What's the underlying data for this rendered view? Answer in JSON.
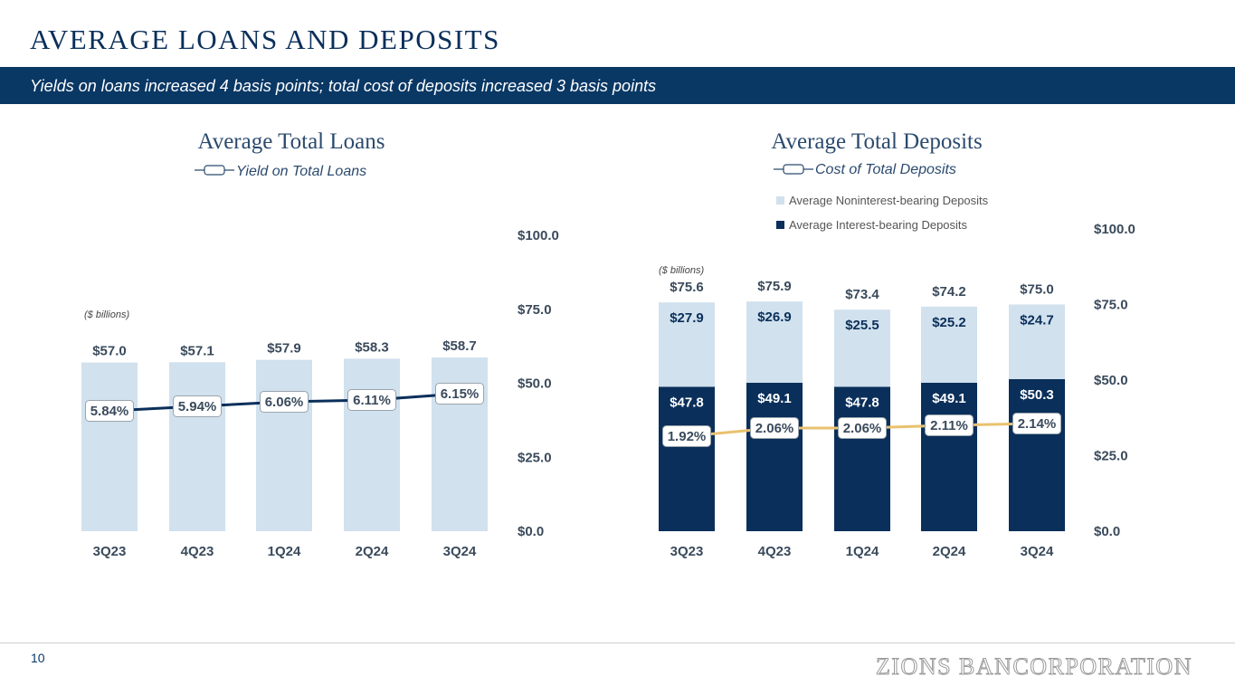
{
  "header": {
    "title": "AVERAGE LOANS AND DEPOSITS",
    "subtitle": "Yields on loans increased 4 basis points; total cost of deposits increased 3 basis points"
  },
  "footer": {
    "page_number": "10",
    "logo_text": "ZIONS BANCORPORATION"
  },
  "colors": {
    "navy": "#0a2f5a",
    "light_blue": "#d1e1ee",
    "gold": "#e8c270",
    "banner": "#0a3865"
  },
  "chart_data": [
    {
      "type": "bar",
      "title": "Average Total Loans",
      "units_note": "($ billions)",
      "categories": [
        "3Q23",
        "4Q23",
        "1Q24",
        "2Q24",
        "3Q24"
      ],
      "values": [
        57.0,
        57.1,
        57.9,
        58.3,
        58.7
      ],
      "value_labels": [
        "$57.0",
        "$57.1",
        "$57.9",
        "$58.3",
        "$58.7"
      ],
      "ylim": [
        0,
        100
      ],
      "y_axis_position": "right",
      "y_ticks": [
        0,
        25,
        50,
        75,
        100
      ],
      "y_tick_labels": [
        "$0.0",
        "$25.0",
        "$50.0",
        "$75.0",
        "$100.0"
      ],
      "line_series": {
        "name": "Yield on Total Loans",
        "values": [
          5.84,
          5.94,
          6.06,
          6.11,
          6.15
        ],
        "labels": [
          "5.84%",
          "5.94%",
          "6.06%",
          "6.11%",
          "6.15%"
        ]
      }
    },
    {
      "type": "stacked_bar",
      "title": "Average Total Deposits",
      "units_note": "($ billions)",
      "categories": [
        "3Q23",
        "4Q23",
        "1Q24",
        "2Q24",
        "3Q24"
      ],
      "series": [
        {
          "name": "Average Interest-bearing Deposits",
          "values": [
            47.8,
            49.1,
            47.8,
            49.1,
            50.3
          ],
          "labels": [
            "$47.8",
            "$49.1",
            "$47.8",
            "$49.1",
            "$50.3"
          ]
        },
        {
          "name": "Average Noninterest-bearing Deposits",
          "values": [
            27.9,
            26.9,
            25.5,
            25.2,
            24.7
          ],
          "labels": [
            "$27.9",
            "$26.9",
            "$25.5",
            "$25.2",
            "$24.7"
          ]
        }
      ],
      "totals": [
        75.6,
        75.9,
        73.4,
        74.2,
        75.0
      ],
      "total_labels": [
        "$75.6",
        "$75.9",
        "$73.4",
        "$74.2",
        "$75.0"
      ],
      "legend_order": [
        "Average Noninterest-bearing Deposits",
        "Average Interest-bearing Deposits"
      ],
      "ylim": [
        0,
        100
      ],
      "y_axis_position": "right",
      "y_ticks": [
        0,
        25,
        50,
        75,
        100
      ],
      "y_tick_labels": [
        "$0.0",
        "$25.0",
        "$50.0",
        "$75.0",
        "$100.0"
      ],
      "line_series": {
        "name": "Cost of Total Deposits",
        "values": [
          1.92,
          2.06,
          2.06,
          2.11,
          2.14
        ],
        "labels": [
          "1.92%",
          "2.06%",
          "2.06%",
          "2.11%",
          "2.14%"
        ]
      }
    }
  ]
}
